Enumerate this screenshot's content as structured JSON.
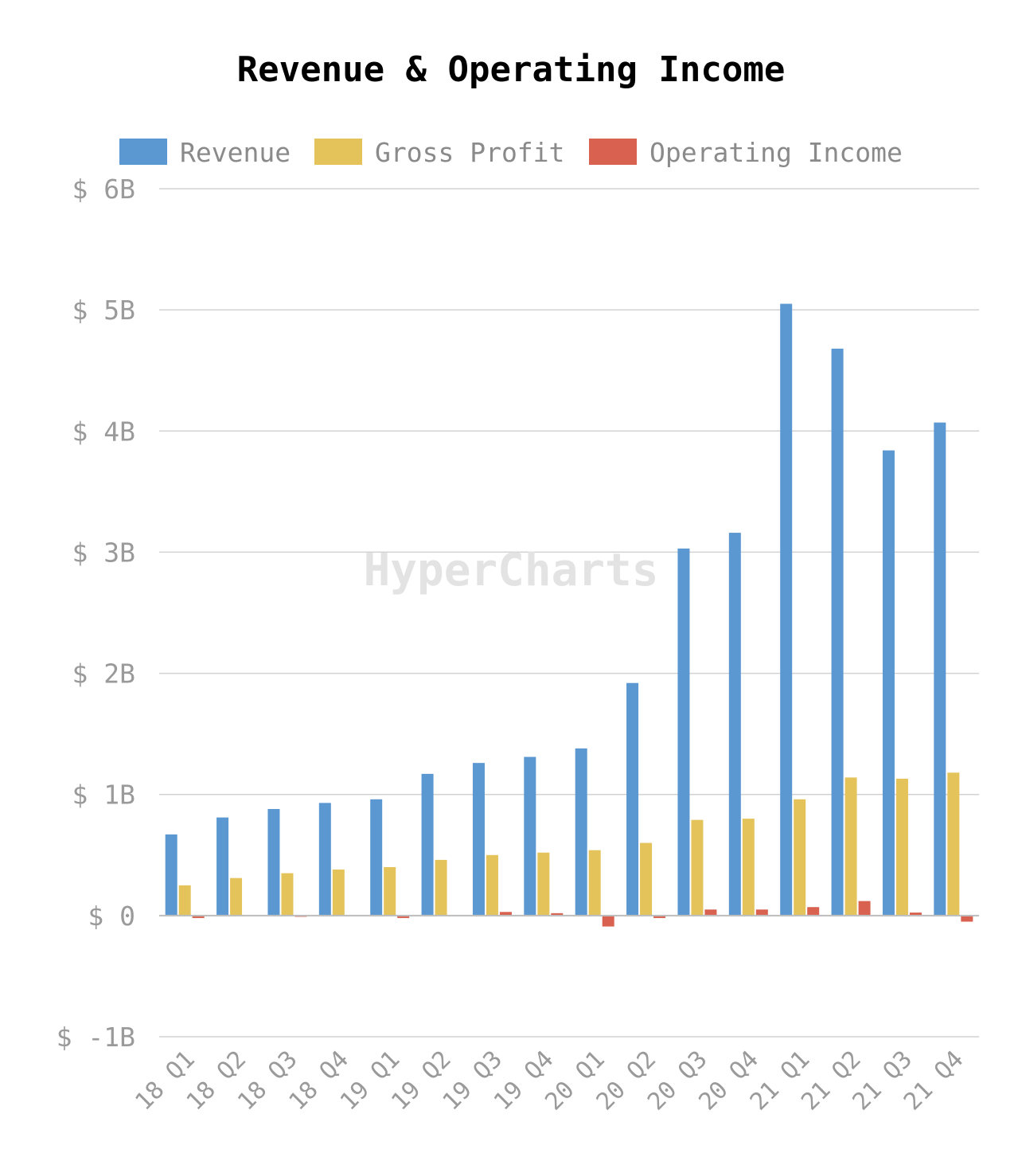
{
  "watermark": "HyperCharts",
  "chart_data": {
    "type": "bar",
    "title": "Revenue & Operating Income",
    "xlabel": "",
    "ylabel": "",
    "ylim": [
      -1,
      6
    ],
    "y_unit": "B",
    "yticks": [
      "$ -1B",
      "$ 0",
      "$ 1B",
      "$ 2B",
      "$ 3B",
      "$ 4B",
      "$ 5B",
      "$ 6B"
    ],
    "ytick_values": [
      -1,
      0,
      1,
      2,
      3,
      4,
      5,
      6
    ],
    "grid": true,
    "legend_position": "top",
    "categories": [
      "18 Q1",
      "18 Q2",
      "18 Q3",
      "18 Q4",
      "19 Q1",
      "19 Q2",
      "19 Q3",
      "19 Q4",
      "20 Q1",
      "20 Q2",
      "20 Q3",
      "20 Q4",
      "21 Q1",
      "21 Q2",
      "21 Q3",
      "21 Q4"
    ],
    "series": [
      {
        "name": "Revenue",
        "color": "#5b97d0",
        "values": [
          0.67,
          0.81,
          0.88,
          0.93,
          0.96,
          1.17,
          1.26,
          1.31,
          1.38,
          1.92,
          3.03,
          3.16,
          5.05,
          4.68,
          3.84,
          4.07
        ]
      },
      {
        "name": "Gross Profit",
        "color": "#e3c35a",
        "values": [
          0.25,
          0.31,
          0.35,
          0.38,
          0.4,
          0.46,
          0.5,
          0.52,
          0.54,
          0.6,
          0.79,
          0.8,
          0.96,
          1.14,
          1.13,
          1.18
        ]
      },
      {
        "name": "Operating Income",
        "color": "#d9614f",
        "values": [
          -0.02,
          -0.005,
          -0.01,
          -0.005,
          -0.02,
          0.0,
          0.03,
          0.02,
          -0.09,
          -0.02,
          0.05,
          0.05,
          0.07,
          0.12,
          0.025,
          -0.05
        ]
      }
    ]
  }
}
